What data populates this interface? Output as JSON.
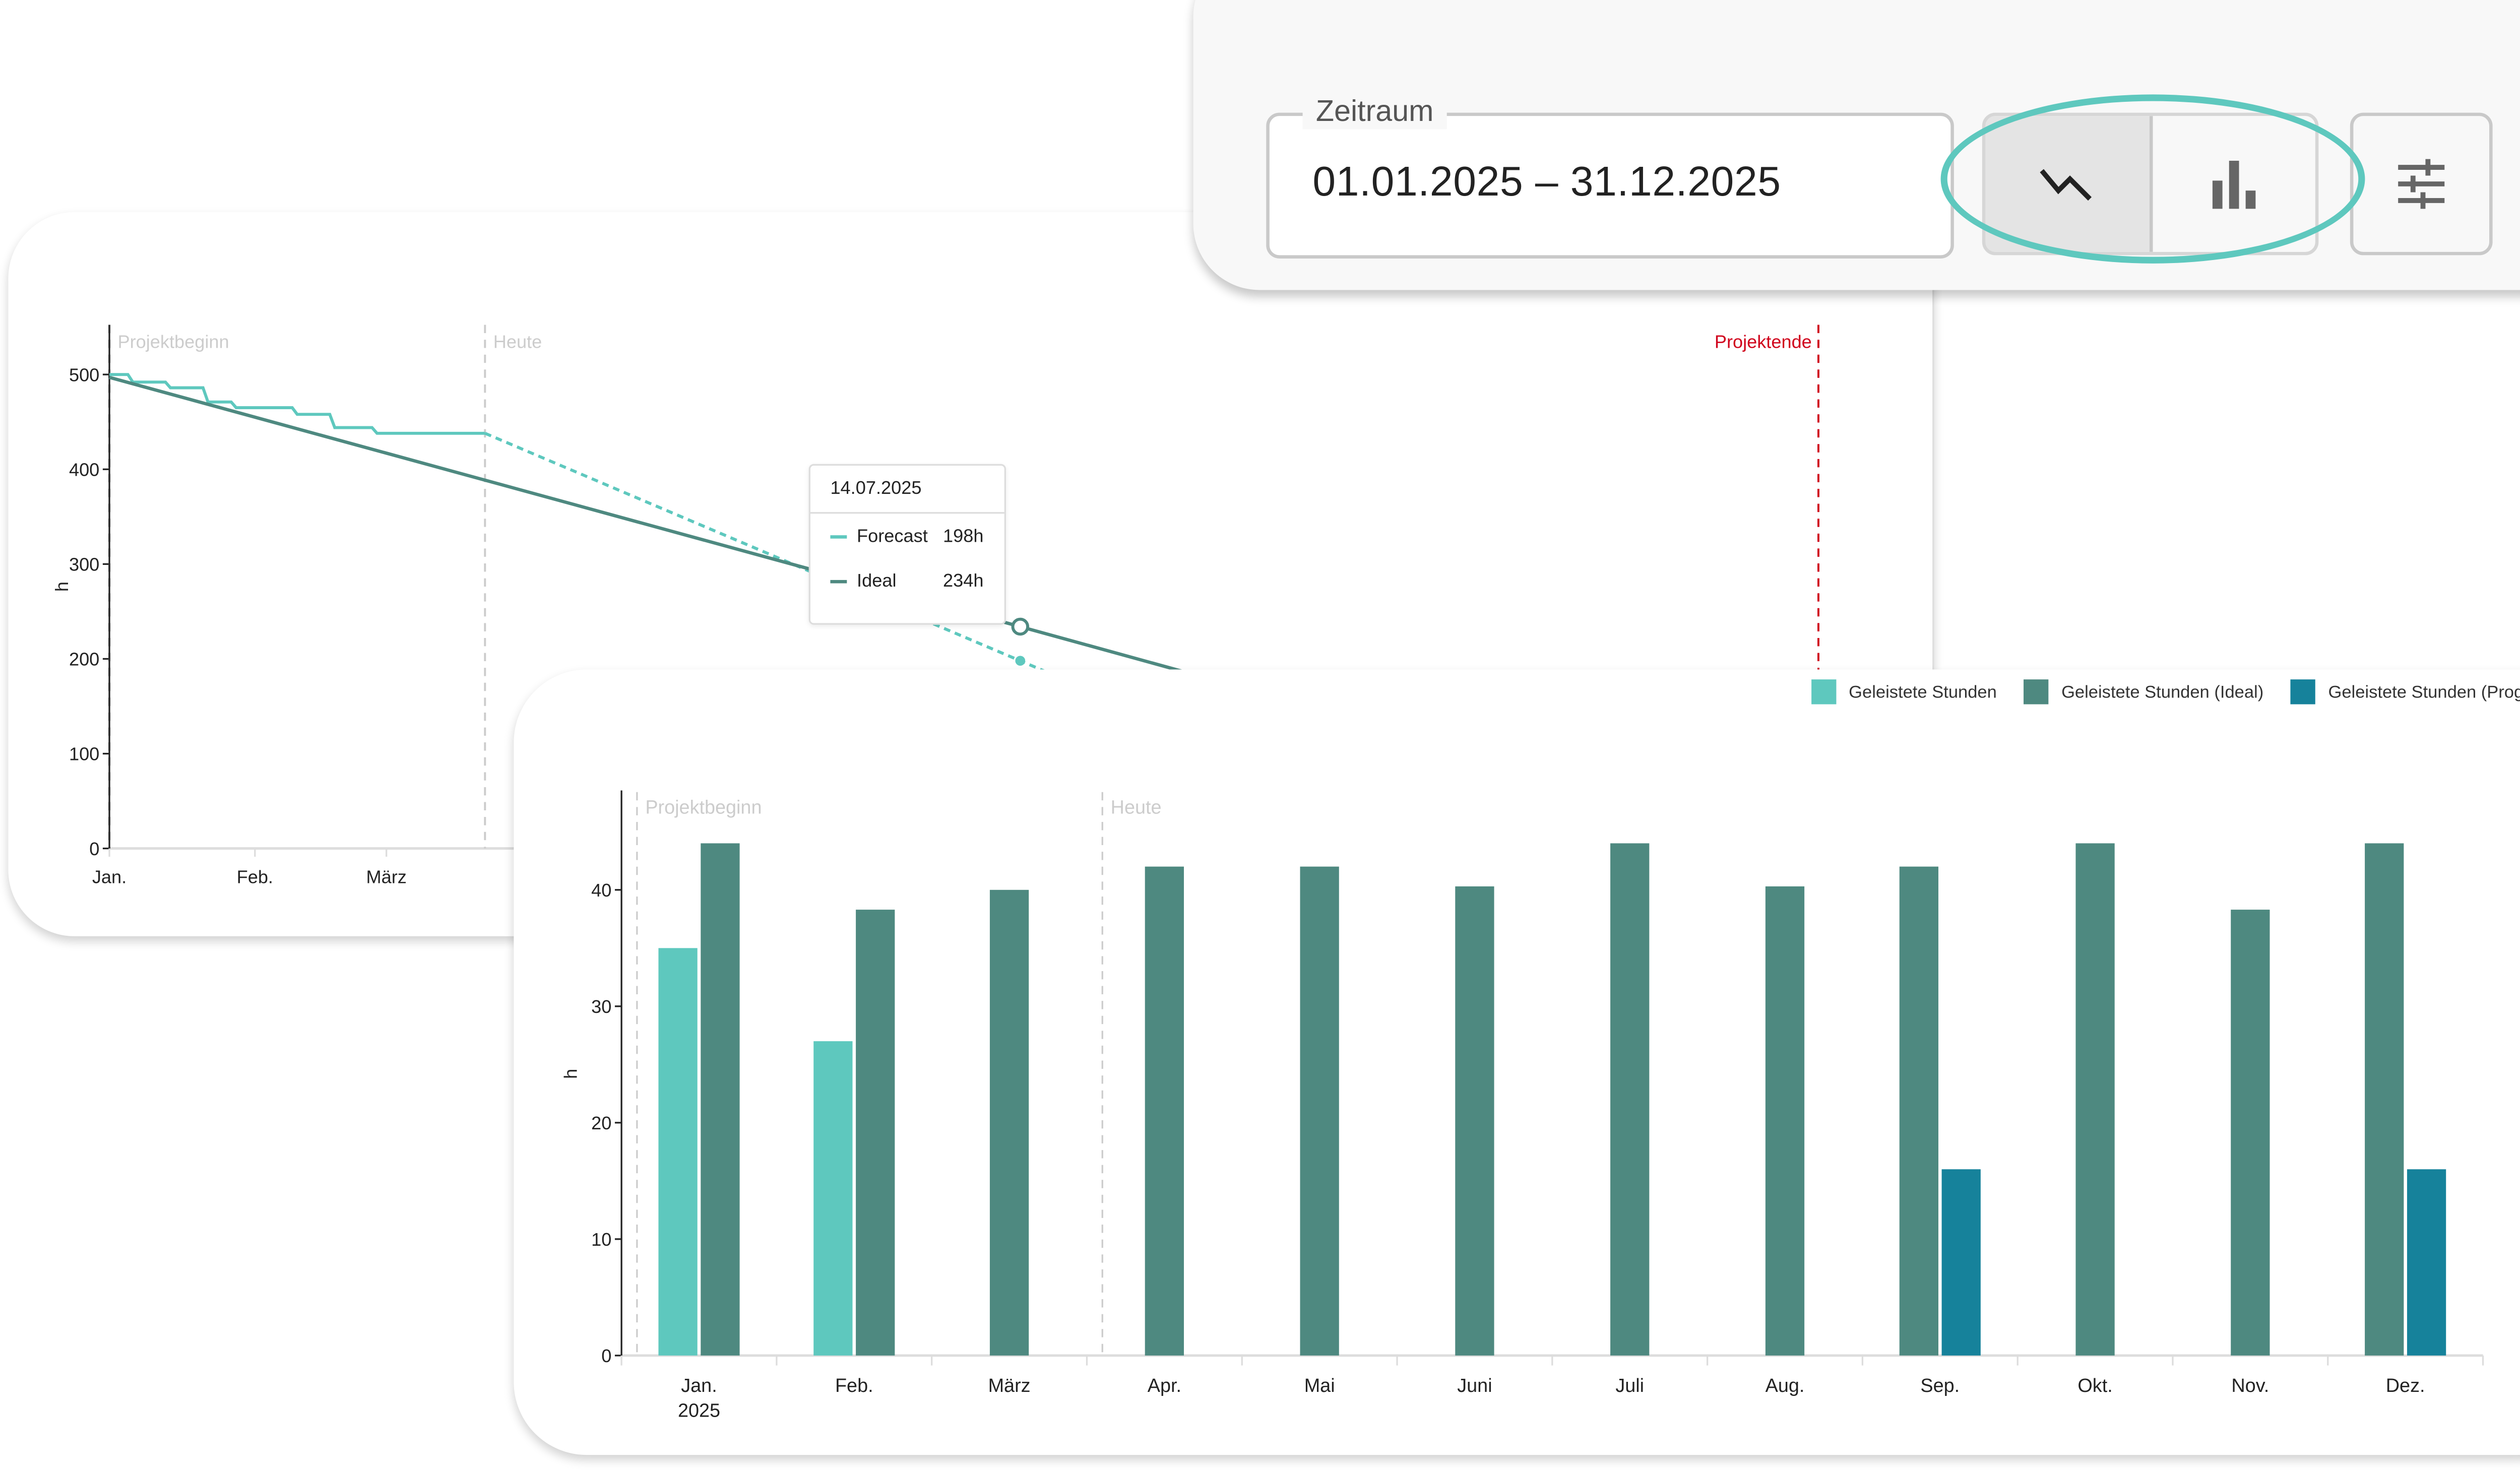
{
  "filter": {
    "label": "Zeitraum",
    "value": "01.01.2025 – 31.12.2025",
    "view_toggle": [
      {
        "icon": "line-chart-icon",
        "selected": true
      },
      {
        "icon": "bar-chart-icon",
        "selected": false
      }
    ],
    "settings_icon": "sliders-icon",
    "highlight_color": "#5ec8be"
  },
  "colors": {
    "actual": "#5ec8be",
    "ideal": "#4e8980",
    "forecast": "#16829b",
    "projektende": "#d0021b",
    "marker": "#cccccc"
  },
  "chart_data": [
    {
      "type": "line",
      "ylabel": "h",
      "ylim": [
        0,
        550
      ],
      "yticks": [
        0,
        100,
        200,
        300,
        400,
        500
      ],
      "xticks": [
        {
          "label": "Jan.",
          "date": "2025-01-01"
        },
        {
          "label": "Feb.",
          "date": "2025-02-01"
        },
        {
          "label": "März",
          "date": "2025-03-01"
        }
      ],
      "markers": [
        {
          "label": "Projektbeginn",
          "date": "2025-01-01",
          "color": "#cccccc"
        },
        {
          "label": "Heute",
          "date": "2025-03-22",
          "color": "#cccccc"
        },
        {
          "label": "Projektende",
          "date": "2025-12-31",
          "color": "#d0021b"
        }
      ],
      "series": [
        {
          "key": "actual",
          "style": "step",
          "color": "#5ec8be",
          "points": [
            [
              "2025-01-01",
              500
            ],
            [
              "2025-01-06",
              492
            ],
            [
              "2025-01-14",
              486
            ],
            [
              "2025-01-22",
              471
            ],
            [
              "2025-01-28",
              465
            ],
            [
              "2025-02-10",
              458
            ],
            [
              "2025-02-18",
              444
            ],
            [
              "2025-02-27",
              438
            ],
            [
              "2025-03-22",
              438
            ]
          ]
        },
        {
          "key": "forecast",
          "name": "Forecast",
          "style": "dashed",
          "color": "#5ec8be",
          "points": [
            [
              "2025-03-22",
              438
            ],
            [
              "2025-07-14",
              198
            ],
            [
              "2025-10-16",
              0
            ]
          ]
        },
        {
          "key": "ideal",
          "name": "Ideal",
          "style": "solid",
          "color": "#4e8980",
          "points": [
            [
              "2025-01-01",
              497
            ],
            [
              "2025-07-14",
              234
            ],
            [
              "2025-12-31",
              2
            ]
          ]
        }
      ],
      "tooltip": {
        "date": "14.07.2025",
        "rows": [
          {
            "label": "Forecast",
            "value": "198h",
            "style": "dashed",
            "color": "#5ec8be"
          },
          {
            "label": "Ideal",
            "value": "234h",
            "style": "solid",
            "color": "#4e8980"
          }
        ]
      }
    },
    {
      "type": "bar",
      "ylabel": "h",
      "ylim": [
        0,
        48
      ],
      "yticks": [
        0,
        10,
        20,
        30,
        40
      ],
      "categories": [
        "Jan.",
        "Feb.",
        "März",
        "Apr.",
        "Mai",
        "Juni",
        "Juli",
        "Aug.",
        "Sep.",
        "Okt.",
        "Nov.",
        "Dez."
      ],
      "year_label": "2025",
      "markers": [
        {
          "label": "Projektbeginn",
          "month_fraction": 0.1
        },
        {
          "label": "Heute",
          "month_fraction": 3.1
        }
      ],
      "legend_position": "top-right",
      "series": [
        {
          "name": "Geleistete Stunden",
          "color": "#5ec8be",
          "values": [
            35,
            27,
            null,
            null,
            null,
            null,
            null,
            null,
            null,
            null,
            null,
            null
          ]
        },
        {
          "name": "Geleistete Stunden (Ideal)",
          "color": "#4e8980",
          "values": [
            44,
            38.3,
            40,
            42,
            42,
            40.3,
            44,
            40.3,
            42,
            44,
            38.3,
            44
          ]
        },
        {
          "name": "Geleistete Stunden (Prognose)",
          "color": "#16829b",
          "values": [
            null,
            null,
            null,
            null,
            null,
            null,
            null,
            null,
            16,
            null,
            null,
            16
          ]
        }
      ]
    }
  ]
}
